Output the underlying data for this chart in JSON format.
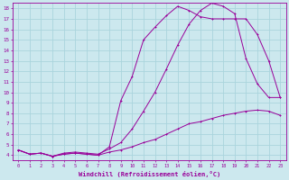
{
  "xlabel": "Windchill (Refroidissement éolien,°C)",
  "xlim": [
    -0.5,
    23.5
  ],
  "ylim": [
    3.5,
    18.5
  ],
  "xticks": [
    0,
    1,
    2,
    3,
    4,
    5,
    6,
    7,
    8,
    9,
    10,
    11,
    12,
    13,
    14,
    15,
    16,
    17,
    18,
    19,
    20,
    21,
    22,
    23
  ],
  "yticks": [
    4,
    5,
    6,
    7,
    8,
    9,
    10,
    11,
    12,
    13,
    14,
    15,
    16,
    17,
    18
  ],
  "bg_color": "#cce8ee",
  "grid_color": "#aad4dd",
  "line_color": "#990099",
  "line1_x": [
    0,
    1,
    2,
    3,
    4,
    5,
    6,
    7,
    8,
    9,
    10,
    11,
    12,
    13,
    14,
    15,
    16,
    17,
    18,
    19,
    20,
    21,
    22,
    23
  ],
  "line1_y": [
    4.5,
    4.1,
    4.2,
    3.9,
    4.1,
    4.2,
    4.1,
    4.0,
    4.8,
    9.2,
    11.5,
    15.0,
    16.2,
    17.3,
    18.2,
    17.8,
    17.2,
    17.0,
    17.0,
    17.0,
    17.0,
    15.5,
    13.0,
    9.5
  ],
  "line2_x": [
    0,
    1,
    2,
    3,
    4,
    5,
    6,
    7,
    8,
    9,
    10,
    11,
    12,
    13,
    14,
    15,
    16,
    17,
    18,
    19,
    20,
    21,
    22,
    23
  ],
  "line2_y": [
    4.5,
    4.1,
    4.2,
    3.9,
    4.2,
    4.3,
    4.2,
    4.1,
    4.6,
    5.2,
    6.5,
    8.2,
    10.0,
    12.2,
    14.5,
    16.5,
    17.8,
    18.5,
    18.2,
    17.5,
    13.2,
    10.8,
    9.5,
    9.5
  ],
  "line3_x": [
    0,
    1,
    2,
    3,
    4,
    5,
    6,
    7,
    8,
    9,
    10,
    11,
    12,
    13,
    14,
    15,
    16,
    17,
    18,
    19,
    20,
    21,
    22,
    23
  ],
  "line3_y": [
    4.5,
    4.1,
    4.2,
    3.9,
    4.1,
    4.2,
    4.1,
    4.0,
    4.3,
    4.5,
    4.8,
    5.2,
    5.5,
    6.0,
    6.5,
    7.0,
    7.2,
    7.5,
    7.8,
    8.0,
    8.2,
    8.3,
    8.2,
    7.8
  ]
}
